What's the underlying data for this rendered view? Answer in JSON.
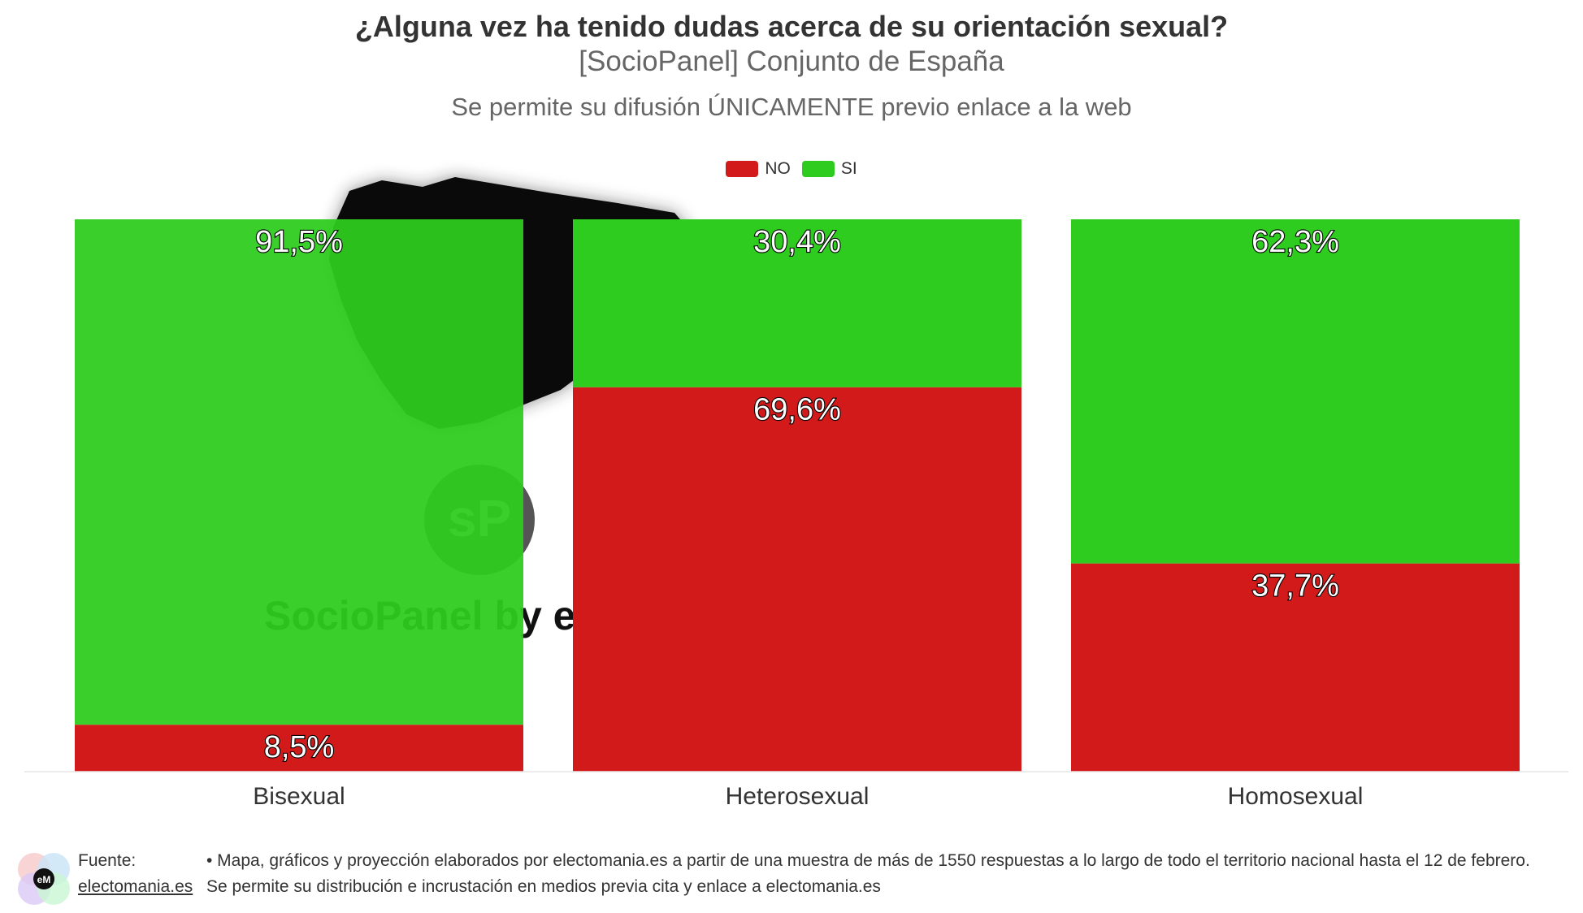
{
  "header": {
    "title": "¿Alguna vez ha tenido dudas acerca de su orientación sexual?",
    "subtitle": "[SocioPanel] Conjunto de España",
    "notice": "Se permite su difusión ÚNICAMENTE previo enlace a la web"
  },
  "watermark": {
    "text": "SocioPanel by electomania",
    "badge": "sP"
  },
  "colors": {
    "no": "#d21a1a",
    "si": "#2ecc1e",
    "axis": "#e6e6e6"
  },
  "chart_data": {
    "type": "bar",
    "stacked": true,
    "orientation": "vertical",
    "categories": [
      "Bisexual",
      "Heterosexual",
      "Homosexual"
    ],
    "series": [
      {
        "name": "NO",
        "values": [
          8.5,
          69.6,
          37.7
        ],
        "labels": [
          "8,5%",
          "69,6%",
          "37,7%"
        ]
      },
      {
        "name": "SI",
        "values": [
          91.5,
          30.4,
          62.3
        ],
        "labels": [
          "91,5%",
          "30,4%",
          "62,3%"
        ]
      }
    ],
    "ylim": [
      0,
      100
    ],
    "legend_position": "top-center",
    "grid": false
  },
  "footer": {
    "source_label": "Fuente:",
    "source_link": "electomania.es",
    "text": "• Mapa, gráficos y proyección elaborados por electomania.es a partir de una muestra de más de 1550 respuestas a lo largo de todo el territorio nacional hasta el 12 de febrero. Se permite su distribución e incrustación en medios previa cita y enlace a electomania.es",
    "logo_text": "eM"
  }
}
